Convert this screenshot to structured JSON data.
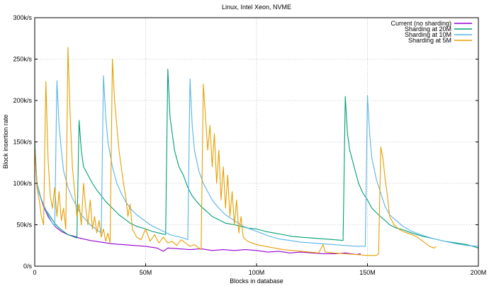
{
  "chart_data": {
    "type": "line",
    "title": "Linux, Intel Xeon, NVME",
    "xlabel": "Blocks in database",
    "ylabel": "Block insertion rate",
    "xlim": [
      0,
      200
    ],
    "ylim": [
      0,
      300
    ],
    "x_unit": "M",
    "y_unit": "k/s",
    "x_ticks": [
      "0",
      "50M",
      "100M",
      "150M",
      "200M"
    ],
    "x_tick_values": [
      0,
      50,
      100,
      150,
      200
    ],
    "y_ticks": [
      "0/s",
      "50k/s",
      "100k/s",
      "150k/s",
      "200k/s",
      "250k/s",
      "300k/s"
    ],
    "y_tick_values": [
      0,
      50,
      100,
      150,
      200,
      250,
      300
    ],
    "grid": true,
    "legend_position": "top-right",
    "series": [
      {
        "name": "Current (no sharding)",
        "color": "#9400d3",
        "points": [
          [
            0,
            148
          ],
          [
            1,
            100
          ],
          [
            2,
            88
          ],
          [
            3,
            80
          ],
          [
            4,
            72
          ],
          [
            5,
            66
          ],
          [
            6,
            60
          ],
          [
            8,
            52
          ],
          [
            10,
            46
          ],
          [
            12,
            42
          ],
          [
            15,
            38
          ],
          [
            18,
            36
          ],
          [
            20,
            34
          ],
          [
            25,
            31
          ],
          [
            30,
            29
          ],
          [
            35,
            27
          ],
          [
            40,
            26
          ],
          [
            45,
            25
          ],
          [
            50,
            24
          ],
          [
            55,
            22
          ],
          [
            58,
            18
          ],
          [
            60,
            22
          ],
          [
            65,
            21
          ],
          [
            70,
            20
          ],
          [
            75,
            21
          ],
          [
            80,
            19
          ],
          [
            85,
            20
          ],
          [
            90,
            19
          ],
          [
            95,
            20
          ],
          [
            100,
            19
          ],
          [
            105,
            17
          ],
          [
            110,
            18
          ],
          [
            115,
            16
          ],
          [
            120,
            17
          ],
          [
            125,
            16
          ],
          [
            130,
            15
          ],
          [
            135,
            15
          ],
          [
            140,
            16
          ],
          [
            145,
            14
          ],
          [
            147,
            15
          ]
        ]
      },
      {
        "name": "Sharding at 20M",
        "color": "#009e73",
        "points": [
          [
            0,
            150
          ],
          [
            1,
            100
          ],
          [
            2,
            90
          ],
          [
            3,
            80
          ],
          [
            5,
            68
          ],
          [
            7,
            60
          ],
          [
            9,
            52
          ],
          [
            11,
            46
          ],
          [
            13,
            42
          ],
          [
            15,
            38
          ],
          [
            17,
            36
          ],
          [
            19,
            34
          ],
          [
            20,
            176
          ],
          [
            21,
            140
          ],
          [
            22,
            120
          ],
          [
            24,
            110
          ],
          [
            26,
            100
          ],
          [
            28,
            92
          ],
          [
            30,
            85
          ],
          [
            32,
            78
          ],
          [
            35,
            70
          ],
          [
            38,
            62
          ],
          [
            40,
            58
          ],
          [
            43,
            52
          ],
          [
            46,
            48
          ],
          [
            50,
            45
          ],
          [
            53,
            42
          ],
          [
            56,
            40
          ],
          [
            59,
            38
          ],
          [
            60,
            238
          ],
          [
            61,
            180
          ],
          [
            62,
            160
          ],
          [
            63,
            140
          ],
          [
            65,
            120
          ],
          [
            67,
            110
          ],
          [
            69,
            95
          ],
          [
            71,
            85
          ],
          [
            73,
            78
          ],
          [
            75,
            72
          ],
          [
            78,
            65
          ],
          [
            80,
            60
          ],
          [
            83,
            56
          ],
          [
            86,
            52
          ],
          [
            90,
            50
          ],
          [
            93,
            48
          ],
          [
            96,
            46
          ],
          [
            100,
            45
          ],
          [
            104,
            42
          ],
          [
            108,
            40
          ],
          [
            112,
            38
          ],
          [
            116,
            36
          ],
          [
            120,
            35
          ],
          [
            125,
            34
          ],
          [
            130,
            33
          ],
          [
            135,
            32
          ],
          [
            139,
            31
          ],
          [
            140,
            205
          ],
          [
            141,
            160
          ],
          [
            142,
            140
          ],
          [
            144,
            120
          ],
          [
            146,
            100
          ],
          [
            148,
            88
          ],
          [
            150,
            80
          ],
          [
            152,
            70
          ],
          [
            155,
            62
          ],
          [
            158,
            55
          ],
          [
            160,
            50
          ],
          [
            163,
            46
          ],
          [
            166,
            44
          ],
          [
            170,
            40
          ],
          [
            175,
            36
          ],
          [
            180,
            33
          ],
          [
            185,
            30
          ],
          [
            190,
            28
          ],
          [
            195,
            26
          ],
          [
            200,
            22
          ]
        ]
      },
      {
        "name": "Sharding at 10M",
        "color": "#56b4e9",
        "points": [
          [
            0,
            152
          ],
          [
            1,
            100
          ],
          [
            2,
            88
          ],
          [
            4,
            74
          ],
          [
            6,
            62
          ],
          [
            8,
            52
          ],
          [
            9,
            48
          ],
          [
            10,
            224
          ],
          [
            11,
            170
          ],
          [
            12,
            140
          ],
          [
            13,
            115
          ],
          [
            15,
            95
          ],
          [
            17,
            82
          ],
          [
            19,
            72
          ],
          [
            21,
            62
          ],
          [
            23,
            56
          ],
          [
            25,
            50
          ],
          [
            27,
            46
          ],
          [
            29,
            42
          ],
          [
            30,
            40
          ],
          [
            31,
            230
          ],
          [
            32,
            180
          ],
          [
            33,
            150
          ],
          [
            35,
            120
          ],
          [
            37,
            100
          ],
          [
            39,
            88
          ],
          [
            41,
            78
          ],
          [
            43,
            70
          ],
          [
            46,
            62
          ],
          [
            49,
            56
          ],
          [
            52,
            50
          ],
          [
            55,
            46
          ],
          [
            58,
            42
          ],
          [
            61,
            38
          ],
          [
            64,
            36
          ],
          [
            67,
            34
          ],
          [
            69,
            32
          ],
          [
            70,
            226
          ],
          [
            71,
            170
          ],
          [
            72,
            140
          ],
          [
            74,
            115
          ],
          [
            76,
            100
          ],
          [
            78,
            90
          ],
          [
            80,
            80
          ],
          [
            83,
            70
          ],
          [
            86,
            62
          ],
          [
            90,
            55
          ],
          [
            94,
            48
          ],
          [
            98,
            44
          ],
          [
            102,
            40
          ],
          [
            106,
            36
          ],
          [
            110,
            33
          ],
          [
            115,
            31
          ],
          [
            120,
            29
          ],
          [
            125,
            28
          ],
          [
            130,
            27
          ],
          [
            135,
            26
          ],
          [
            140,
            25
          ],
          [
            145,
            24
          ],
          [
            149,
            24
          ],
          [
            150,
            206
          ],
          [
            151,
            160
          ],
          [
            152,
            130
          ],
          [
            154,
            105
          ],
          [
            156,
            88
          ],
          [
            158,
            72
          ],
          [
            160,
            62
          ],
          [
            163,
            55
          ],
          [
            166,
            48
          ],
          [
            170,
            42
          ],
          [
            175,
            37
          ],
          [
            180,
            33
          ],
          [
            185,
            30
          ],
          [
            190,
            27
          ],
          [
            195,
            25
          ],
          [
            200,
            24
          ]
        ]
      },
      {
        "name": "Sharding at 5M",
        "color": "#e69f00",
        "points": [
          [
            0,
            145
          ],
          [
            1,
            95
          ],
          [
            2,
            80
          ],
          [
            3,
            60
          ],
          [
            4,
            50
          ],
          [
            5,
            223
          ],
          [
            6,
            130
          ],
          [
            7,
            85
          ],
          [
            8,
            70
          ],
          [
            9,
            95
          ],
          [
            10,
            60
          ],
          [
            11,
            90
          ],
          [
            12,
            55
          ],
          [
            13,
            70
          ],
          [
            14,
            45
          ],
          [
            15,
            264
          ],
          [
            16,
            180
          ],
          [
            17,
            120
          ],
          [
            18,
            90
          ],
          [
            19,
            60
          ],
          [
            20,
            75
          ],
          [
            21,
            50
          ],
          [
            22,
            100
          ],
          [
            23,
            70
          ],
          [
            24,
            50
          ],
          [
            25,
            80
          ],
          [
            26,
            45
          ],
          [
            27,
            60
          ],
          [
            28,
            40
          ],
          [
            29,
            55
          ],
          [
            30,
            35
          ],
          [
            31,
            45
          ],
          [
            32,
            30
          ],
          [
            33,
            40
          ],
          [
            34,
            28
          ],
          [
            35,
            250
          ],
          [
            36,
            200
          ],
          [
            37,
            170
          ],
          [
            38,
            140
          ],
          [
            39,
            120
          ],
          [
            40,
            100
          ],
          [
            41,
            85
          ],
          [
            42,
            60
          ],
          [
            43,
            75
          ],
          [
            44,
            45
          ],
          [
            45,
            40
          ],
          [
            46,
            35
          ],
          [
            48,
            32
          ],
          [
            50,
            45
          ],
          [
            52,
            30
          ],
          [
            54,
            38
          ],
          [
            56,
            28
          ],
          [
            58,
            35
          ],
          [
            60,
            28
          ],
          [
            62,
            30
          ],
          [
            64,
            25
          ],
          [
            66,
            32
          ],
          [
            68,
            28
          ],
          [
            70,
            24
          ],
          [
            72,
            26
          ],
          [
            74,
            22
          ],
          [
            75,
            20
          ],
          [
            76,
            220
          ],
          [
            77,
            180
          ],
          [
            78,
            140
          ],
          [
            79,
            170
          ],
          [
            80,
            120
          ],
          [
            81,
            160
          ],
          [
            82,
            100
          ],
          [
            83,
            140
          ],
          [
            84,
            80
          ],
          [
            85,
            120
          ],
          [
            86,
            70
          ],
          [
            87,
            110
          ],
          [
            88,
            60
          ],
          [
            89,
            90
          ],
          [
            90,
            50
          ],
          [
            91,
            80
          ],
          [
            92,
            40
          ],
          [
            93,
            60
          ],
          [
            94,
            35
          ],
          [
            96,
            30
          ],
          [
            98,
            28
          ],
          [
            100,
            26
          ],
          [
            104,
            24
          ],
          [
            108,
            22
          ],
          [
            112,
            20
          ],
          [
            116,
            19
          ],
          [
            120,
            18
          ],
          [
            124,
            17
          ],
          [
            128,
            16
          ],
          [
            130,
            26
          ],
          [
            131,
            17
          ],
          [
            135,
            16
          ],
          [
            140,
            15
          ],
          [
            145,
            14
          ],
          [
            150,
            13
          ],
          [
            154,
            13
          ],
          [
            155,
            15
          ],
          [
            156,
            144
          ],
          [
            157,
            130
          ],
          [
            158,
            105
          ],
          [
            159,
            85
          ],
          [
            160,
            60
          ],
          [
            162,
            50
          ],
          [
            164,
            45
          ],
          [
            166,
            42
          ],
          [
            168,
            40
          ],
          [
            170,
            38
          ],
          [
            172,
            36
          ],
          [
            174,
            32
          ],
          [
            176,
            28
          ],
          [
            178,
            24
          ],
          [
            180,
            22
          ],
          [
            181,
            24
          ]
        ]
      }
    ]
  }
}
